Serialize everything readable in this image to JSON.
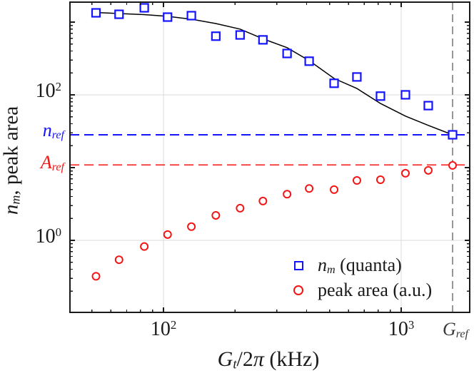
{
  "chart_data": {
    "type": "scatter",
    "title": "",
    "xlabel": "G_t/2pi (kHz)",
    "ylabel": "n_m, peak area",
    "x_scale": "log",
    "y_scale": "log",
    "xlim": [
      40.4,
      1942
    ],
    "ylim": [
      0.102,
      1880
    ],
    "grid": true,
    "x_gridlines": [
      100,
      1000
    ],
    "y_gridlines": [
      1,
      100
    ],
    "x_tick_labels": [
      {
        "value": 100,
        "segs": [
          [
            "10",
            ""
          ],
          [
            "2",
            "sup"
          ]
        ]
      },
      {
        "value": 1000,
        "segs": [
          [
            "10",
            ""
          ],
          [
            "3",
            "sup"
          ]
        ]
      }
    ],
    "y_tick_labels": [
      {
        "value": 100,
        "segs": [
          [
            "10",
            ""
          ],
          [
            "2",
            "sup"
          ]
        ]
      },
      {
        "value": 1,
        "segs": [
          [
            "10",
            ""
          ],
          [
            "0",
            "sup"
          ]
        ]
      }
    ],
    "x_label_segs": [
      [
        "G",
        "i"
      ],
      [
        "t",
        "subi"
      ],
      [
        "/2",
        ""
      ],
      [
        "π",
        "i"
      ],
      [
        " (kHz)",
        ""
      ]
    ],
    "y_label_segs": [
      [
        "n",
        "i"
      ],
      [
        "m",
        "subi"
      ],
      [
        ", peak area",
        ""
      ]
    ],
    "x": [
      52,
      65,
      83,
      104,
      131,
      166,
      210,
      262,
      331,
      410,
      522,
      651,
      818,
      1042,
      1300,
      1645
    ],
    "series": [
      {
        "name": "n_m (quanta)",
        "marker": "square",
        "color": "#1414FF",
        "values": [
          1340,
          1280,
          1570,
          1170,
          1225,
          640,
          665,
          570,
          370,
          290,
          144,
          176,
          96,
          100,
          71,
          28.2
        ]
      },
      {
        "name": "peak area (a.u.)",
        "marker": "circle",
        "color": "#F51414",
        "values": [
          0.32,
          0.54,
          0.82,
          1.2,
          1.54,
          2.2,
          2.76,
          3.46,
          4.3,
          5.15,
          4.97,
          6.65,
          6.8,
          8.35,
          9.15,
          10.7
        ]
      }
    ],
    "fit_curve": {
      "color": "#000000",
      "x": [
        50,
        65,
        83,
        104,
        131,
        166,
        210,
        265,
        331,
        410,
        522,
        651,
        818,
        1042,
        1300,
        1645
      ],
      "y": [
        1360,
        1310,
        1265,
        1200,
        1095,
        955,
        800,
        580,
        445,
        295,
        168,
        122,
        76,
        51,
        38,
        28.2
      ]
    },
    "ref_lines": [
      {
        "id": "n_ref",
        "axis": "y",
        "value": 28.2,
        "color": "#1414FF",
        "label_color": "#1414FF",
        "dash": "13 7",
        "label_segs": [
          [
            "n",
            "i"
          ],
          [
            "ref",
            "subi"
          ]
        ]
      },
      {
        "id": "A_ref",
        "axis": "y",
        "value": 10.9,
        "color": "#F51414",
        "label_color": "#F51414",
        "dash": "13 7",
        "label_segs": [
          [
            "A",
            "i"
          ],
          [
            "ref",
            "subi"
          ]
        ]
      },
      {
        "id": "G_ref",
        "axis": "x",
        "value": 1645,
        "color": "#979797",
        "label_color": "#3A3A3A",
        "dash": "11 6",
        "label_segs": [
          [
            "G",
            "i"
          ],
          [
            "ref",
            "subi"
          ]
        ]
      }
    ],
    "legend": {
      "position": "lower right",
      "items": [
        {
          "marker": "square",
          "color": "#1414FF",
          "segs": [
            [
              "n",
              "i"
            ],
            [
              "m",
              "subi"
            ],
            [
              " (quanta)",
              ""
            ]
          ]
        },
        {
          "marker": "circle",
          "color": "#F51414",
          "segs": [
            [
              "peak area (a.u.)",
              ""
            ]
          ]
        }
      ]
    }
  },
  "colors": {
    "axis": "#1a1a1a",
    "grid": "#DBDBDB",
    "background": "#FFFFFF"
  }
}
